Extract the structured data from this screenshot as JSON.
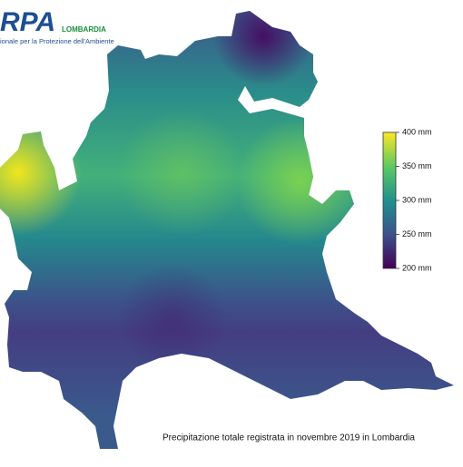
{
  "logo": {
    "mark": "RPA",
    "name": "LOMBARDIA",
    "tagline": "ionale per la Protezione dell'Ambiente"
  },
  "colorbar": {
    "range": [
      200,
      400
    ],
    "ticks": [
      {
        "value": 400,
        "label": "400 mm"
      },
      {
        "value": 350,
        "label": "350 mm"
      },
      {
        "value": 300,
        "label": "300 mm"
      },
      {
        "value": 250,
        "label": "250 mm"
      },
      {
        "value": 200,
        "label": "200 mm"
      }
    ],
    "colors": [
      "#440154",
      "#3b528b",
      "#21918c",
      "#5ec962",
      "#fde725"
    ]
  },
  "caption": "Precipitazione totale registrata in novembre 2019 in Lombardia"
}
